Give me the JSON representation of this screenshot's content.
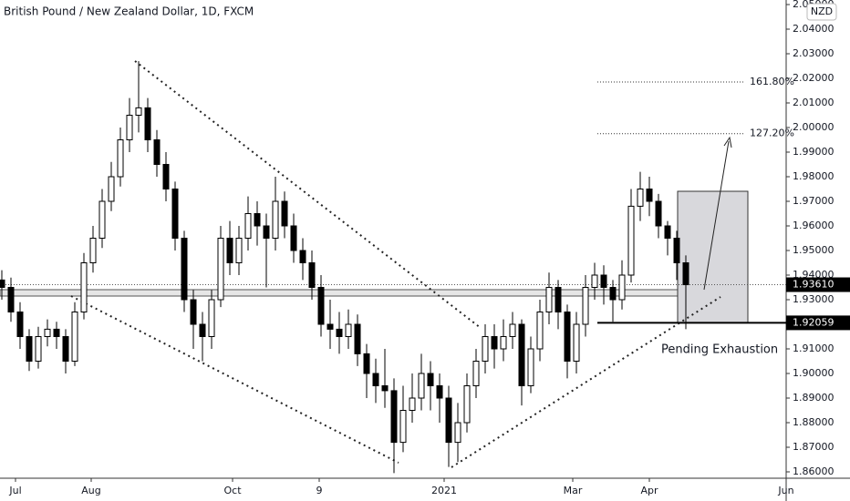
{
  "chart_data": {
    "type": "candlestick",
    "title": "British Pound / New Zealand Dollar, 1D, FXCM",
    "currency": "NZD",
    "annotation": "Pending Exhaustion",
    "x": [
      0,
      1,
      2,
      3,
      4,
      5,
      6,
      7,
      8,
      9,
      10,
      11,
      12,
      13,
      14,
      15,
      16,
      17,
      18,
      19,
      20,
      21,
      22,
      23,
      24,
      25,
      26,
      27,
      28,
      29,
      30,
      31,
      32,
      33,
      34,
      35,
      36,
      37,
      38,
      39,
      40,
      41,
      42,
      43,
      44,
      45,
      46,
      47,
      48,
      49,
      50,
      51,
      52,
      53,
      54,
      55,
      56,
      57,
      58,
      59,
      60,
      61,
      62,
      63,
      64,
      65,
      66,
      67,
      68,
      69,
      70,
      71,
      72,
      73,
      74,
      75
    ],
    "open": [
      1.938,
      1.935,
      1.925,
      1.915,
      1.905,
      1.915,
      1.918,
      1.915,
      1.905,
      1.925,
      1.945,
      1.955,
      1.97,
      1.98,
      1.995,
      2.005,
      2.008,
      1.995,
      1.985,
      1.975,
      1.955,
      1.93,
      1.92,
      1.915,
      1.93,
      1.955,
      1.945,
      1.955,
      1.965,
      1.96,
      1.955,
      1.97,
      1.96,
      1.95,
      1.945,
      1.935,
      1.92,
      1.918,
      1.915,
      1.92,
      1.908,
      1.9,
      1.895,
      1.893,
      1.872,
      1.885,
      1.89,
      1.9,
      1.895,
      1.89,
      1.872,
      1.88,
      1.895,
      1.905,
      1.915,
      1.91,
      1.915,
      1.92,
      1.895,
      1.91,
      1.925,
      1.935,
      1.925,
      1.905,
      1.92,
      1.935,
      1.94,
      1.935,
      1.93,
      1.94,
      1.968,
      1.975,
      1.97,
      1.96,
      1.955,
      1.945
    ],
    "high": [
      1.942,
      1.939,
      1.929,
      1.918,
      1.919,
      1.922,
      1.921,
      1.918,
      1.929,
      1.949,
      1.96,
      1.975,
      1.986,
      2.0,
      2.012,
      2.027,
      2.012,
      1.999,
      1.99,
      1.978,
      1.958,
      1.934,
      1.925,
      1.934,
      1.96,
      1.962,
      1.96,
      1.972,
      1.97,
      1.965,
      1.98,
      1.974,
      1.965,
      1.955,
      1.95,
      1.94,
      1.93,
      1.925,
      1.926,
      1.924,
      1.912,
      1.906,
      1.91,
      1.898,
      1.895,
      1.9,
      1.908,
      1.905,
      1.9,
      1.895,
      1.888,
      1.9,
      1.91,
      1.92,
      1.92,
      1.922,
      1.925,
      1.922,
      1.915,
      1.93,
      1.941,
      1.938,
      1.928,
      1.925,
      1.94,
      1.945,
      1.944,
      1.938,
      1.946,
      1.975,
      1.982,
      1.98,
      1.973,
      1.962,
      1.958,
      1.948
    ],
    "low": [
      1.93,
      1.921,
      1.91,
      1.901,
      1.902,
      1.911,
      1.91,
      1.9,
      1.903,
      1.922,
      1.941,
      1.951,
      1.966,
      1.976,
      1.99,
      1.998,
      1.99,
      1.98,
      1.97,
      1.95,
      1.925,
      1.91,
      1.905,
      1.91,
      1.927,
      1.94,
      1.94,
      1.95,
      1.952,
      1.935,
      1.95,
      1.955,
      1.945,
      1.938,
      1.93,
      1.915,
      1.91,
      1.908,
      1.91,
      1.903,
      1.89,
      1.888,
      1.886,
      1.8595,
      1.868,
      1.88,
      1.885,
      1.885,
      1.88,
      1.862,
      1.864,
      1.876,
      1.89,
      1.9,
      1.902,
      1.905,
      1.91,
      1.887,
      1.892,
      1.905,
      1.92,
      1.918,
      1.898,
      1.9,
      1.915,
      1.93,
      1.928,
      1.921,
      1.926,
      1.937,
      1.962,
      1.964,
      1.955,
      1.948,
      1.938,
      1.918
    ],
    "close": [
      1.935,
      1.925,
      1.915,
      1.905,
      1.915,
      1.918,
      1.915,
      1.905,
      1.925,
      1.945,
      1.955,
      1.97,
      1.98,
      1.995,
      2.005,
      2.008,
      1.995,
      1.985,
      1.975,
      1.955,
      1.93,
      1.92,
      1.915,
      1.93,
      1.955,
      1.945,
      1.955,
      1.965,
      1.96,
      1.955,
      1.97,
      1.96,
      1.95,
      1.945,
      1.935,
      1.92,
      1.918,
      1.915,
      1.92,
      1.908,
      1.9,
      1.895,
      1.893,
      1.872,
      1.885,
      1.89,
      1.9,
      1.895,
      1.89,
      1.872,
      1.88,
      1.895,
      1.905,
      1.915,
      1.91,
      1.915,
      1.92,
      1.895,
      1.91,
      1.925,
      1.935,
      1.925,
      1.905,
      1.92,
      1.935,
      1.94,
      1.935,
      1.93,
      1.94,
      1.968,
      1.975,
      1.97,
      1.96,
      1.955,
      1.945,
      1.9361
    ],
    "up_color": "#ffffff",
    "down_color": "#000000",
    "edge_color": "#000000",
    "xlim": [
      -0.2,
      86
    ],
    "xticks": [
      {
        "value": 1.5,
        "label": "Jul"
      },
      {
        "value": 9.8,
        "label": "Aug"
      },
      {
        "value": 25.3,
        "label": "Oct"
      },
      {
        "value": 34.8,
        "label": "9"
      },
      {
        "value": 48.5,
        "label": "2021"
      },
      {
        "value": 62.6,
        "label": "Mar"
      },
      {
        "value": 71,
        "label": "Apr"
      },
      {
        "value": 86,
        "label": "Jun"
      }
    ],
    "ylim": [
      1.85741,
      2.05185
    ],
    "yticks": [
      {
        "value": 1.86,
        "label": "1.86000"
      },
      {
        "value": 1.87,
        "label": "1.87000"
      },
      {
        "value": 1.88,
        "label": "1.88000"
      },
      {
        "value": 1.89,
        "label": "1.89000"
      },
      {
        "value": 1.9,
        "label": "1.90000"
      },
      {
        "value": 1.91,
        "label": "1.91000"
      },
      {
        "value": 1.92,
        "label": "1.92000"
      },
      {
        "value": 1.93,
        "label": "1.93000"
      },
      {
        "value": 1.94,
        "label": "1.94000"
      },
      {
        "value": 1.95,
        "label": "1.95000"
      },
      {
        "value": 1.96,
        "label": "1.96000"
      },
      {
        "value": 1.97,
        "label": "1.97000"
      },
      {
        "value": 1.98,
        "label": "1.98000"
      },
      {
        "value": 1.99,
        "label": "1.99000"
      },
      {
        "value": 2.0,
        "label": "2.00000"
      },
      {
        "value": 2.01,
        "label": "2.01000"
      },
      {
        "value": 2.02,
        "label": "2.02000"
      },
      {
        "value": 2.03,
        "label": "2.03000"
      },
      {
        "value": 2.04,
        "label": "2.04000"
      },
      {
        "value": 2.05,
        "label": "2.05000"
      }
    ],
    "current_price": {
      "value": 1.9361,
      "label": "1.93610"
    },
    "support_level": 1.92059,
    "fib_levels": [
      {
        "name": "161.80%",
        "price": 2.0185
      },
      {
        "name": "127.20%",
        "price": 1.9975
      }
    ]
  }
}
